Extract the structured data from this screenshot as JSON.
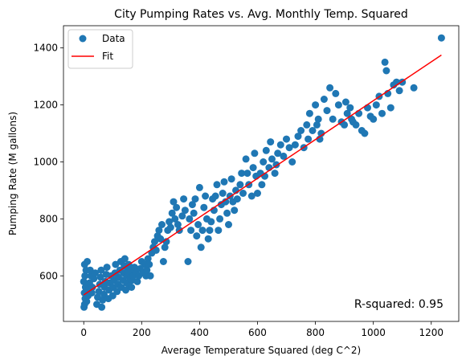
{
  "chart_data": {
    "type": "scatter",
    "title": "City Pumping Rates vs. Avg. Monthly Temp. Squared",
    "xlabel": "Average Temperature Squared (deg C^2)",
    "ylabel": "Pumping Rate (M gallons)",
    "xlim": [
      -70,
      1295
    ],
    "ylim": [
      440,
      1478
    ],
    "xticks": [
      0,
      200,
      400,
      600,
      800,
      1000,
      1200
    ],
    "yticks": [
      600,
      800,
      1000,
      1200,
      1400
    ],
    "grid": false,
    "legend_position": "top-left",
    "legend": [
      "Data",
      "Fit"
    ],
    "annotation": "R-squared: 0.95",
    "colors": {
      "data": "#1f77b4",
      "fit": "#ff0000"
    },
    "series": [
      {
        "name": "Data",
        "kind": "scatter",
        "points": [
          [
            1,
            490
          ],
          [
            3,
            500
          ],
          [
            5,
            520
          ],
          [
            2,
            540
          ],
          [
            6,
            560
          ],
          [
            0,
            580
          ],
          [
            4,
            600
          ],
          [
            8,
            620
          ],
          [
            3,
            640
          ],
          [
            12,
            650
          ],
          [
            10,
            510
          ],
          [
            15,
            530
          ],
          [
            18,
            555
          ],
          [
            20,
            575
          ],
          [
            25,
            600
          ],
          [
            22,
            620
          ],
          [
            28,
            540
          ],
          [
            30,
            560
          ],
          [
            35,
            590
          ],
          [
            40,
            610
          ],
          [
            45,
            500
          ],
          [
            48,
            525
          ],
          [
            52,
            545
          ],
          [
            55,
            570
          ],
          [
            58,
            595
          ],
          [
            60,
            620
          ],
          [
            62,
            490
          ],
          [
            65,
            515
          ],
          [
            70,
            535
          ],
          [
            72,
            560
          ],
          [
            75,
            580
          ],
          [
            78,
            605
          ],
          [
            80,
            630
          ],
          [
            85,
            520
          ],
          [
            88,
            550
          ],
          [
            90,
            575
          ],
          [
            95,
            600
          ],
          [
            100,
            530
          ],
          [
            102,
            560
          ],
          [
            105,
            585
          ],
          [
            108,
            610
          ],
          [
            110,
            640
          ],
          [
            115,
            545
          ],
          [
            118,
            570
          ],
          [
            120,
            595
          ],
          [
            125,
            620
          ],
          [
            128,
            650
          ],
          [
            130,
            560
          ],
          [
            135,
            585
          ],
          [
            138,
            610
          ],
          [
            140,
            635
          ],
          [
            142,
            660
          ],
          [
            145,
            550
          ],
          [
            148,
            575
          ],
          [
            150,
            600
          ],
          [
            152,
            625
          ],
          [
            155,
            640
          ],
          [
            158,
            565
          ],
          [
            160,
            590
          ],
          [
            162,
            615
          ],
          [
            165,
            560
          ],
          [
            168,
            585
          ],
          [
            170,
            600
          ],
          [
            175,
            630
          ],
          [
            180,
            610
          ],
          [
            185,
            580
          ],
          [
            190,
            600
          ],
          [
            195,
            625
          ],
          [
            200,
            650
          ],
          [
            205,
            610
          ],
          [
            210,
            640
          ],
          [
            215,
            600
          ],
          [
            218,
            620
          ],
          [
            222,
            660
          ],
          [
            226,
            640
          ],
          [
            230,
            600
          ],
          [
            235,
            680
          ],
          [
            240,
            700
          ],
          [
            245,
            720
          ],
          [
            250,
            690
          ],
          [
            255,
            740
          ],
          [
            260,
            760
          ],
          [
            265,
            730
          ],
          [
            270,
            780
          ],
          [
            275,
            650
          ],
          [
            280,
            700
          ],
          [
            285,
            720
          ],
          [
            290,
            760
          ],
          [
            295,
            790
          ],
          [
            300,
            770
          ],
          [
            305,
            820
          ],
          [
            310,
            860
          ],
          [
            315,
            800
          ],
          [
            320,
            840
          ],
          [
            325,
            780
          ],
          [
            330,
            760
          ],
          [
            340,
            810
          ],
          [
            345,
            870
          ],
          [
            350,
            830
          ],
          [
            360,
            650
          ],
          [
            365,
            800
          ],
          [
            370,
            760
          ],
          [
            375,
            850
          ],
          [
            380,
            820
          ],
          [
            385,
            870
          ],
          [
            390,
            740
          ],
          [
            395,
            780
          ],
          [
            400,
            910
          ],
          [
            405,
            700
          ],
          [
            410,
            760
          ],
          [
            415,
            840
          ],
          [
            420,
            880
          ],
          [
            425,
            800
          ],
          [
            430,
            730
          ],
          [
            435,
            760
          ],
          [
            440,
            790
          ],
          [
            445,
            870
          ],
          [
            450,
            830
          ],
          [
            455,
            880
          ],
          [
            460,
            920
          ],
          [
            465,
            760
          ],
          [
            470,
            800
          ],
          [
            475,
            850
          ],
          [
            480,
            890
          ],
          [
            485,
            930
          ],
          [
            490,
            860
          ],
          [
            495,
            820
          ],
          [
            500,
            780
          ],
          [
            505,
            880
          ],
          [
            510,
            940
          ],
          [
            515,
            860
          ],
          [
            520,
            830
          ],
          [
            525,
            900
          ],
          [
            530,
            870
          ],
          [
            540,
            920
          ],
          [
            545,
            960
          ],
          [
            550,
            890
          ],
          [
            560,
            1010
          ],
          [
            565,
            960
          ],
          [
            570,
            920
          ],
          [
            580,
            880
          ],
          [
            585,
            980
          ],
          [
            590,
            1030
          ],
          [
            595,
            950
          ],
          [
            600,
            890
          ],
          [
            610,
            960
          ],
          [
            615,
            920
          ],
          [
            620,
            1000
          ],
          [
            625,
            950
          ],
          [
            630,
            1040
          ],
          [
            640,
            980
          ],
          [
            645,
            1070
          ],
          [
            650,
            1010
          ],
          [
            660,
            960
          ],
          [
            665,
            990
          ],
          [
            670,
            1030
          ],
          [
            680,
            1060
          ],
          [
            690,
            1020
          ],
          [
            700,
            1080
          ],
          [
            710,
            1050
          ],
          [
            720,
            1000
          ],
          [
            730,
            1060
          ],
          [
            740,
            1090
          ],
          [
            750,
            1110
          ],
          [
            760,
            1050
          ],
          [
            770,
            1130
          ],
          [
            775,
            1080
          ],
          [
            780,
            1170
          ],
          [
            790,
            1110
          ],
          [
            800,
            1200
          ],
          [
            805,
            1130
          ],
          [
            810,
            1150
          ],
          [
            815,
            1080
          ],
          [
            820,
            1100
          ],
          [
            830,
            1220
          ],
          [
            840,
            1180
          ],
          [
            850,
            1260
          ],
          [
            860,
            1150
          ],
          [
            870,
            1240
          ],
          [
            880,
            1200
          ],
          [
            890,
            1140
          ],
          [
            900,
            1130
          ],
          [
            905,
            1210
          ],
          [
            910,
            1170
          ],
          [
            920,
            1190
          ],
          [
            925,
            1150
          ],
          [
            930,
            1140
          ],
          [
            940,
            1130
          ],
          [
            950,
            1170
          ],
          [
            960,
            1110
          ],
          [
            970,
            1100
          ],
          [
            980,
            1190
          ],
          [
            990,
            1160
          ],
          [
            1000,
            1150
          ],
          [
            1010,
            1200
          ],
          [
            1020,
            1230
          ],
          [
            1030,
            1170
          ],
          [
            1040,
            1350
          ],
          [
            1045,
            1320
          ],
          [
            1050,
            1240
          ],
          [
            1060,
            1190
          ],
          [
            1070,
            1270
          ],
          [
            1080,
            1280
          ],
          [
            1090,
            1250
          ],
          [
            1100,
            1280
          ],
          [
            1140,
            1260
          ],
          [
            1235,
            1435
          ]
        ]
      },
      {
        "name": "Fit",
        "kind": "line",
        "points": [
          [
            0,
            533
          ],
          [
            1235,
            1375
          ]
        ]
      }
    ]
  }
}
